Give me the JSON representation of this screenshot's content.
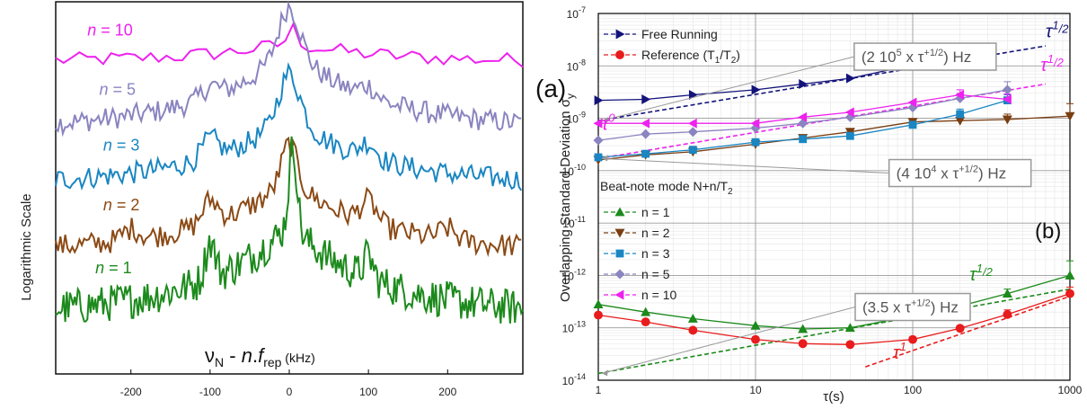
{
  "chart_data": [
    {
      "panel_label": "(a)",
      "type": "line",
      "ylabel": "Logarithmic Scale",
      "xlabel": {
        "nu": "ν",
        "nu_sub": "N",
        "mid": " - ",
        "n": "n",
        "dot": ".",
        "f": "f",
        "f_sub": "rep",
        "unit": " (kHz)"
      },
      "xlim": [
        -295,
        295
      ],
      "xticks": [
        -200,
        -100,
        0,
        100,
        200
      ],
      "series": [
        {
          "name": "n = 10",
          "label_n": "n",
          "label_rest": " = 10",
          "color": "#ee22ee",
          "offset": 0.16,
          "amp": 0.05,
          "noise": 0.02,
          "peaks": [
            [
              5,
              0.04,
              6
            ]
          ],
          "step": 10
        },
        {
          "name": "n = 5",
          "label_n": "n",
          "label_rest": " = 5",
          "color": "#8a84c0",
          "offset": 0.34,
          "amp": 0.21,
          "noise": 0.03,
          "peaks": [
            [
              0,
              0.12,
              14
            ],
            [
              -100,
              0.03,
              10
            ],
            [
              100,
              0.03,
              10
            ]
          ],
          "step": 3
        },
        {
          "name": "n = 3",
          "label_n": "n",
          "label_rest": " = 3",
          "color": "#1a86c2",
          "offset": 0.49,
          "amp": 0.18,
          "noise": 0.03,
          "peaks": [
            [
              0,
              0.12,
              14
            ],
            [
              -100,
              0.05,
              10
            ],
            [
              100,
              0.04,
              10
            ]
          ],
          "step": 3
        },
        {
          "name": "n = 2",
          "label_n": "n",
          "label_rest": " = 2",
          "color": "#8b4a15",
          "offset": 0.67,
          "amp": 0.19,
          "noise": 0.032,
          "peaks": [
            [
              0,
              0.1,
              10
            ],
            [
              -100,
              0.06,
              10
            ],
            [
              100,
              0.06,
              10
            ],
            [
              -200,
              0.03,
              10
            ],
            [
              200,
              0.03,
              10
            ]
          ],
          "step": 3
        },
        {
          "name": "n = 1",
          "label_n": "n",
          "label_rest": " = 1",
          "color": "#1c8a1c",
          "offset": 0.84,
          "amp": 0.24,
          "noise": 0.05,
          "peaks": [
            [
              5,
              0.22,
              5
            ],
            [
              -100,
              0.1,
              6
            ],
            [
              100,
              0.06,
              6
            ]
          ],
          "step": 2
        }
      ]
    },
    {
      "panel_label": "(b)",
      "type": "line",
      "xscale": "log",
      "yscale": "log",
      "xlabel": "τ(s)",
      "ylabel": "Overlapping Standard Deviation σ",
      "ylabel_sub": "y",
      "xlim": [
        1,
        1000
      ],
      "ylim": [
        1e-14,
        1e-07
      ],
      "xticks": [
        1,
        10,
        100,
        1000
      ],
      "xticklabels": [
        "1",
        "10",
        "100",
        "1000"
      ],
      "yticks": [
        1e-14,
        1e-13,
        1e-12,
        1e-11,
        1e-10,
        1e-09,
        1e-08,
        1e-07
      ],
      "yticklabels": [
        [
          "10",
          "-14"
        ],
        [
          "10",
          "-13"
        ],
        [
          "10",
          "-12"
        ],
        [
          "10",
          "-11"
        ],
        [
          "10",
          "-10"
        ],
        [
          "10",
          "-9"
        ],
        [
          "10",
          "-8"
        ],
        [
          "10",
          "-7"
        ]
      ],
      "grid": true,
      "legend_heading": "Beat-note mode N+n/T",
      "legend_heading_sub": "2",
      "tau": [
        1,
        2,
        4,
        10,
        20,
        40,
        100,
        200,
        400,
        1000
      ],
      "series": [
        {
          "name": "Free Running",
          "color": "#13137a",
          "marker": "triangle-right",
          "values": [
            2.2e-09,
            2.3e-09,
            2.8e-09,
            3.5e-09,
            4.5e-09,
            5.8e-09,
            1.05e-08,
            1.5e-08,
            null,
            null
          ],
          "err": [
            null,
            null,
            null,
            null,
            null,
            null,
            1.4e-08,
            2.1e-08,
            null,
            null
          ]
        },
        {
          "name": "Reference (T1/T2)",
          "name_parts": [
            "Reference (T",
            "1",
            "/T",
            "2",
            ")"
          ],
          "color": "#e81c1c",
          "marker": "circle",
          "values": [
            1.75e-13,
            1.3e-13,
            9e-14,
            6e-14,
            5e-14,
            4.8e-14,
            6e-14,
            9.8e-14,
            1.8e-13,
            4.5e-13
          ],
          "err": [
            null,
            null,
            null,
            null,
            null,
            null,
            null,
            1.1e-13,
            2.2e-13,
            6e-13
          ]
        },
        {
          "name": "n = 1",
          "color": "#1c8a1c",
          "marker": "triangle-up",
          "values": [
            2.8e-13,
            2e-13,
            1.5e-13,
            1.1e-13,
            9.5e-14,
            1e-13,
            1.7e-13,
            2.6e-13,
            4.5e-13,
            1e-12
          ],
          "err": [
            null,
            null,
            null,
            null,
            null,
            null,
            null,
            3e-13,
            5.5e-13,
            1.9e-12
          ]
        },
        {
          "name": "n = 2",
          "color": "#7a3e12",
          "marker": "triangle-down",
          "values": [
            1.6e-10,
            2e-10,
            2.3e-10,
            3.2e-10,
            4.2e-10,
            5.5e-10,
            8.5e-10,
            9e-10,
            9.5e-10,
            1.1e-09
          ],
          "err": [
            null,
            null,
            null,
            null,
            null,
            null,
            null,
            null,
            1.2e-09,
            1.9e-09
          ]
        },
        {
          "name": "n = 3",
          "color": "#1a86c2",
          "marker": "square",
          "values": [
            1.8e-10,
            2.1e-10,
            2.5e-10,
            3.5e-10,
            4e-10,
            4.6e-10,
            7.5e-10,
            1.2e-09,
            2.2e-09,
            null
          ],
          "err": [
            null,
            null,
            null,
            null,
            null,
            null,
            null,
            1.5e-09,
            2.8e-09,
            null
          ]
        },
        {
          "name": "n = 5",
          "color": "#8a84c0",
          "marker": "diamond",
          "values": [
            3.8e-10,
            5e-10,
            5.5e-10,
            6.5e-10,
            8e-10,
            1.05e-09,
            1.6e-09,
            2.4e-09,
            3.5e-09,
            null
          ],
          "err": [
            null,
            null,
            null,
            null,
            null,
            null,
            null,
            3e-09,
            5e-09,
            null
          ]
        },
        {
          "name": "n = 10",
          "color": "#ee22ee",
          "marker": "triangle-left",
          "values": [
            8e-10,
            8e-10,
            8e-10,
            8e-10,
            1.05e-09,
            1.3e-09,
            2e-09,
            2.8e-09,
            2.3e-09,
            null
          ],
          "err": [
            null,
            null,
            null,
            null,
            null,
            null,
            null,
            3.5e-09,
            2.9e-09,
            null
          ]
        }
      ],
      "fits": [
        {
          "color": "#13137a",
          "dash": "5,3",
          "tau": [
            1,
            700
          ],
          "values": [
            9e-10,
            2.4e-08
          ]
        },
        {
          "color": "#ee22ee",
          "dash": "5,3",
          "tau": [
            1,
            700
          ],
          "values": [
            1.7e-10,
            4.5e-09
          ]
        },
        {
          "color": "#1c8a1c",
          "dash": "5,3",
          "tau": [
            1,
            1000
          ],
          "values": [
            1.35e-14,
            5.5e-13
          ]
        },
        {
          "color": "#e81c1c",
          "dash": "5,3",
          "tau": [
            50,
            1000
          ],
          "values": [
            1.8e-14,
            4e-13
          ]
        }
      ],
      "annotations": [
        {
          "box": [
            "(2 10",
            "5",
            " x τ",
            "+1/2",
            ") Hz"
          ],
          "tau": 120,
          "val": 1.5e-08,
          "arrow_to": [
            1,
            9e-10
          ]
        },
        {
          "box": [
            "(4 10",
            "4",
            " x τ",
            "+1/2",
            ") Hz"
          ],
          "tau": 200,
          "val": 9e-11,
          "arrow_to": [
            1,
            1.7e-10
          ]
        },
        {
          "box": [
            "(3.5 x τ",
            "+1/2",
            ") Hz"
          ],
          "tau": 100,
          "val": 2.5e-13,
          "arrow_to": [
            1,
            1.35e-14
          ]
        }
      ],
      "slope_labels": [
        {
          "base": "τ",
          "sup": "1",
          "frac": "/2",
          "color": "#13137a",
          "tau": 700,
          "val": 3.5e-08
        },
        {
          "base": "τ",
          "sup": "1",
          "frac": "/2",
          "color": "#ee22ee",
          "tau": 650,
          "val": 8e-09
        },
        {
          "base": "τ",
          "sup": "0",
          "frac": "",
          "color": "#ee22ee",
          "tau": 1.05,
          "val": 6e-10
        },
        {
          "base": "τ",
          "sup": "1",
          "frac": "/2",
          "color": "#1c8a1c",
          "tau": 230,
          "val": 8e-13
        },
        {
          "base": "τ",
          "sup": "1",
          "frac": "",
          "color": "#e81c1c",
          "tau": 75,
          "val": 2.6e-14
        }
      ]
    }
  ]
}
